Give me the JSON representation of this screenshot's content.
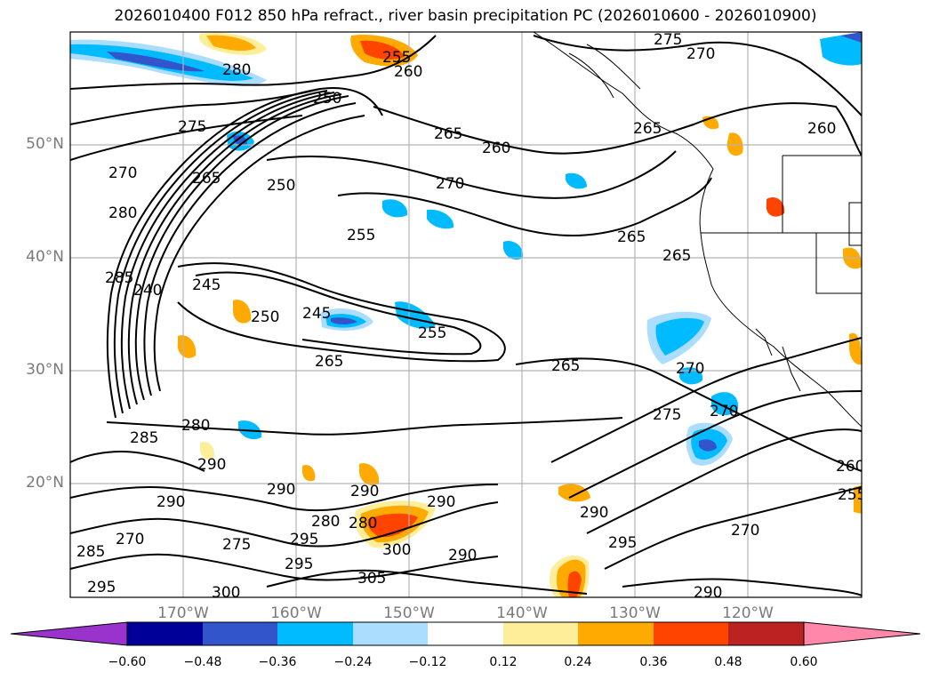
{
  "title": "2026010400 F012 850 hPa refract., river basin precipitation PC (2026010600 - 2026010900)",
  "map": {
    "latitude_labels": [
      "50°N",
      "40°N",
      "30°N",
      "20°N"
    ],
    "longitude_labels": [
      "170°W",
      "160°W",
      "150°W",
      "140°W",
      "130°W",
      "120°W"
    ],
    "contour_labels": [
      "275",
      "270",
      "255",
      "260",
      "280",
      "250",
      "265",
      "260",
      "265",
      "270",
      "275",
      "265",
      "270",
      "260",
      "250",
      "280",
      "255",
      "265",
      "265",
      "285",
      "240",
      "245",
      "250",
      "245",
      "255",
      "265",
      "265",
      "270",
      "275",
      "270",
      "285",
      "280",
      "290",
      "290",
      "290",
      "280",
      "290",
      "290",
      "270",
      "275",
      "280",
      "285",
      "295",
      "295",
      "300",
      "305",
      "290",
      "295",
      "300",
      "295",
      "270",
      "260",
      "255",
      "290",
      "290"
    ]
  },
  "colorbar": {
    "colors": [
      "#9933cc",
      "#000099",
      "#3355cc",
      "#00bbff",
      "#aaddff",
      "#ffffff",
      "#ffee99",
      "#ffaa00",
      "#ff4400",
      "#bb2222",
      "#ff88aa"
    ],
    "ticks": [
      "−0.60",
      "−0.48",
      "−0.36",
      "−0.24",
      "−0.12",
      "0.12",
      "0.24",
      "0.36",
      "0.48",
      "0.60"
    ]
  }
}
